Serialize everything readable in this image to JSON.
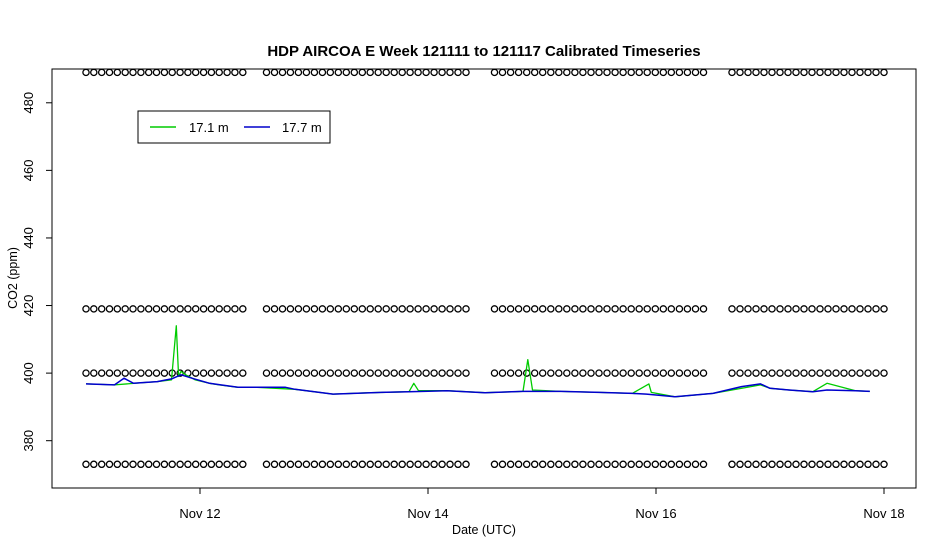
{
  "chart_data": {
    "type": "line",
    "title": "HDP AIRCOA E  Week 121111 to 121117  Calibrated Timeseries",
    "xlabel": "Date (UTC)",
    "ylabel": "CO2 (ppm)",
    "xlim": [
      "2012-11-11",
      "2012-11-18"
    ],
    "ylim": [
      366,
      490
    ],
    "x_ticks": [
      {
        "x": "2012-11-12",
        "label": "Nov 12"
      },
      {
        "x": "2012-11-14",
        "label": "Nov 14"
      },
      {
        "x": "2012-11-16",
        "label": "Nov 16"
      },
      {
        "x": "2012-11-18",
        "label": "Nov 18"
      }
    ],
    "y_ticks": [
      380,
      400,
      420,
      440,
      460,
      480
    ],
    "legend": {
      "position": "top-left",
      "entries": [
        "17.1 m",
        "17.7 m"
      ]
    },
    "grid": false,
    "colors": {
      "17.1 m": "#00cc00",
      "17.7 m": "#0000cc",
      "calibration": "#000000"
    },
    "series": [
      {
        "name": "17.1 m",
        "color": "#00cc00",
        "x": [
          "2012-11-11 00:00",
          "2012-11-11 06:00",
          "2012-11-11 12:00",
          "2012-11-11 15:00",
          "2012-11-11 18:00",
          "2012-11-11 19:00",
          "2012-11-11 19:30",
          "2012-11-11 20:00",
          "2012-11-11 21:00",
          "2012-11-11 23:00",
          "2012-11-12 02:00",
          "2012-11-12 04:00",
          "2012-11-12 08:00",
          "2012-11-12 12:00",
          "2012-11-12 20:00",
          "2012-11-13 04:00",
          "2012-11-13 12:00",
          "2012-11-13 20:00",
          "2012-11-13 21:00",
          "2012-11-13 22:00",
          "2012-11-14 04:00",
          "2012-11-14 12:00",
          "2012-11-14 20:00",
          "2012-11-14 21:00",
          "2012-11-14 22:00",
          "2012-11-15 04:00",
          "2012-11-15 12:00",
          "2012-11-15 19:00",
          "2012-11-15 22:30",
          "2012-11-15 23:00",
          "2012-11-16 04:00",
          "2012-11-16 12:00",
          "2012-11-16 20:00",
          "2012-11-16 22:00",
          "2012-11-17 00:00",
          "2012-11-17 04:00",
          "2012-11-17 09:00",
          "2012-11-17 12:00",
          "2012-11-17 18:00",
          "2012-11-17 21:00"
        ],
        "y": [
          396.8,
          396.5,
          397.2,
          397.5,
          398.0,
          414.0,
          399.0,
          400.5,
          399.5,
          398.0,
          397.0,
          396.5,
          395.8,
          395.8,
          395.2,
          393.8,
          394.2,
          394.5,
          397.0,
          394.8,
          394.8,
          394.2,
          394.6,
          404.0,
          395.0,
          394.6,
          394.3,
          394.0,
          396.8,
          394.3,
          393.0,
          394.0,
          396.0,
          396.5,
          395.5,
          395.0,
          394.5,
          397.0,
          394.8,
          394.6
        ]
      },
      {
        "name": "17.7 m",
        "color": "#0000cc",
        "x": [
          "2012-11-11 00:00",
          "2012-11-11 06:00",
          "2012-11-11 08:00",
          "2012-11-11 10:00",
          "2012-11-11 15:00",
          "2012-11-11 18:00",
          "2012-11-11 20:00",
          "2012-11-11 23:00",
          "2012-11-12 02:00",
          "2012-11-12 04:00",
          "2012-11-12 08:00",
          "2012-11-12 12:00",
          "2012-11-12 18:00",
          "2012-11-12 20:00",
          "2012-11-13 04:00",
          "2012-11-13 12:00",
          "2012-11-13 20:00",
          "2012-11-14 04:00",
          "2012-11-14 12:00",
          "2012-11-14 20:00",
          "2012-11-15 04:00",
          "2012-11-15 12:00",
          "2012-11-15 19:00",
          "2012-11-15 22:00",
          "2012-11-16 04:00",
          "2012-11-16 12:00",
          "2012-11-16 18:00",
          "2012-11-16 22:00",
          "2012-11-17 00:00",
          "2012-11-17 04:00",
          "2012-11-17 09:00",
          "2012-11-17 12:00",
          "2012-11-17 18:00",
          "2012-11-17 21:00"
        ],
        "y": [
          396.8,
          396.5,
          398.5,
          397.0,
          397.5,
          398.3,
          399.5,
          398.2,
          397.0,
          396.6,
          395.8,
          395.8,
          395.8,
          395.2,
          393.8,
          394.2,
          394.5,
          394.8,
          394.2,
          394.6,
          394.6,
          394.3,
          394.0,
          393.8,
          393.0,
          394.0,
          396.0,
          396.8,
          395.5,
          395.0,
          394.5,
          395.0,
          394.8,
          394.6
        ]
      }
    ],
    "calibration_points": {
      "description": "open circles",
      "levels": [
        489,
        419,
        400,
        373
      ],
      "segments": [
        {
          "start": "2012-11-11 00:00",
          "end": "2012-11-12 09:00"
        },
        {
          "start": "2012-11-12 14:00",
          "end": "2012-11-14 08:00"
        },
        {
          "start": "2012-11-14 14:00",
          "end": "2012-11-16 10:00"
        },
        {
          "start": "2012-11-16 16:00",
          "end": "2012-11-18 00:00"
        }
      ]
    }
  }
}
